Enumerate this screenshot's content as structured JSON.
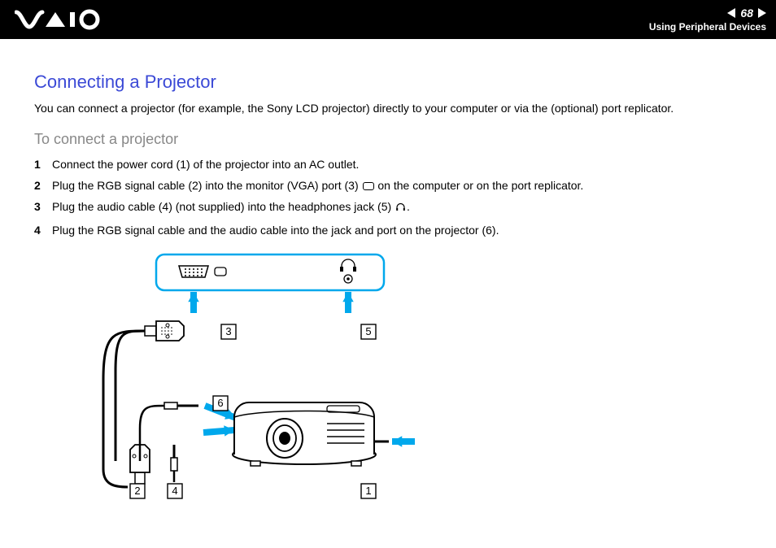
{
  "header": {
    "page_number": "68",
    "section": "Using Peripheral Devices",
    "logo_color": "#ffffff",
    "bg_color": "#000000"
  },
  "title": {
    "text": "Connecting a Projector",
    "color": "#3b49d6"
  },
  "intro": "You can connect a projector (for example, the Sony LCD projector) directly to your computer or via the (optional) port replicator.",
  "subheading": "To connect a projector",
  "steps": [
    {
      "n": "1",
      "text": "Connect the power cord (1) of the projector into an AC outlet."
    },
    {
      "n": "2",
      "pre": "Plug the RGB signal cable (2) into the monitor (VGA) port (3) ",
      "icon": "monitor",
      "post": " on the computer or on the port replicator."
    },
    {
      "n": "3",
      "pre": "Plug the audio cable (4) (not supplied) into the headphones jack (5) ",
      "icon": "headphones",
      "post": "."
    },
    {
      "n": "4",
      "text": "Plug the RGB signal cable and the audio cable into the jack and port on the projector (6)."
    }
  ],
  "diagram": {
    "arrow_color": "#00a8ec",
    "port_panel_stroke": "#00a8ec",
    "labels": [
      "1",
      "2",
      "3",
      "4",
      "5",
      "6"
    ],
    "line_color": "#000000",
    "bg": "#ffffff"
  }
}
